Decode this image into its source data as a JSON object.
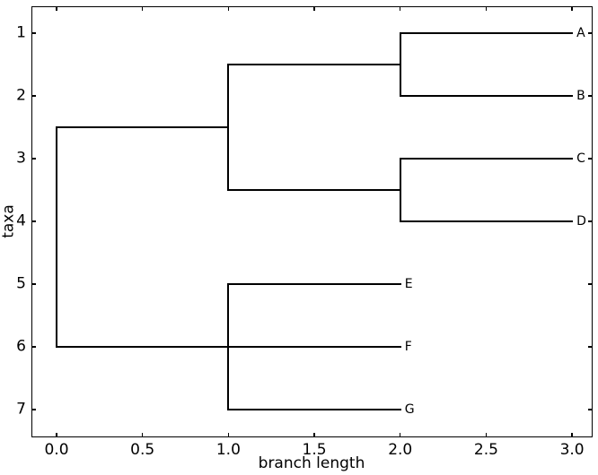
{
  "figure": {
    "background": "#ffffff",
    "line_color": "#000000",
    "text_color": "#000000"
  },
  "chart_data": {
    "type": "tree",
    "subtype": "phylogram",
    "title": "",
    "xlabel": "branch length",
    "ylabel": "taxa",
    "xlim": [
      -0.149,
      3.117
    ],
    "ylim": [
      0.571,
      7.443
    ],
    "grid": false,
    "legend": false,
    "x_ticks": [
      {
        "value": 0.0,
        "label": "0.0"
      },
      {
        "value": 0.5,
        "label": "0.5"
      },
      {
        "value": 1.0,
        "label": "1.0"
      },
      {
        "value": 1.5,
        "label": "1.5"
      },
      {
        "value": 2.0,
        "label": "2.0"
      },
      {
        "value": 2.5,
        "label": "2.5"
      },
      {
        "value": 3.0,
        "label": "3.0"
      }
    ],
    "y_ticks": [
      {
        "value": 1,
        "label": "1"
      },
      {
        "value": 2,
        "label": "2"
      },
      {
        "value": 3,
        "label": "3"
      },
      {
        "value": 4,
        "label": "4"
      },
      {
        "value": 5,
        "label": "5"
      },
      {
        "value": 6,
        "label": "6"
      },
      {
        "value": 7,
        "label": "7"
      }
    ],
    "newick": "(((A:1.0,B:1.0):1.0,(C:1.0,D:1.0):1.0):1.0,(E:1.0,F:1.0,G:1.0):1.0);",
    "leaves": [
      {
        "name": "A",
        "x": 3.0,
        "y": 1
      },
      {
        "name": "B",
        "x": 3.0,
        "y": 2
      },
      {
        "name": "C",
        "x": 3.0,
        "y": 3
      },
      {
        "name": "D",
        "x": 3.0,
        "y": 4
      },
      {
        "name": "E",
        "x": 2.0,
        "y": 5
      },
      {
        "name": "F",
        "x": 2.0,
        "y": 6
      },
      {
        "name": "G",
        "x": 2.0,
        "y": 7
      }
    ],
    "segments": [
      {
        "name": "branch-A",
        "o": "h",
        "y": 1,
        "x1": 2,
        "x2": 3
      },
      {
        "name": "branch-B",
        "o": "h",
        "y": 2,
        "x1": 2,
        "x2": 3
      },
      {
        "name": "clade-AB-join",
        "o": "v",
        "x": 2,
        "y1": 1,
        "y2": 2
      },
      {
        "name": "branch-clade-AB",
        "o": "h",
        "y": 1.5,
        "x1": 1,
        "x2": 2
      },
      {
        "name": "branch-C",
        "o": "h",
        "y": 3,
        "x1": 2,
        "x2": 3
      },
      {
        "name": "branch-D",
        "o": "h",
        "y": 4,
        "x1": 2,
        "x2": 3
      },
      {
        "name": "clade-CD-join",
        "o": "v",
        "x": 2,
        "y1": 3,
        "y2": 4
      },
      {
        "name": "branch-clade-CD",
        "o": "h",
        "y": 3.5,
        "x1": 1,
        "x2": 2
      },
      {
        "name": "clade-ABCD-join",
        "o": "v",
        "x": 1,
        "y1": 1.5,
        "y2": 3.5
      },
      {
        "name": "branch-clade-ABCD",
        "o": "h",
        "y": 2.5,
        "x1": 0,
        "x2": 1
      },
      {
        "name": "branch-E",
        "o": "h",
        "y": 5,
        "x1": 1,
        "x2": 2
      },
      {
        "name": "branch-F",
        "o": "h",
        "y": 6,
        "x1": 1,
        "x2": 2
      },
      {
        "name": "branch-G",
        "o": "h",
        "y": 7,
        "x1": 1,
        "x2": 2
      },
      {
        "name": "clade-EFG-join",
        "o": "v",
        "x": 1,
        "y1": 5,
        "y2": 7
      },
      {
        "name": "branch-clade-EFG",
        "o": "h",
        "y": 6,
        "x1": 0,
        "x2": 1
      },
      {
        "name": "root-join",
        "o": "v",
        "x": 0,
        "y1": 2.5,
        "y2": 6
      }
    ]
  }
}
